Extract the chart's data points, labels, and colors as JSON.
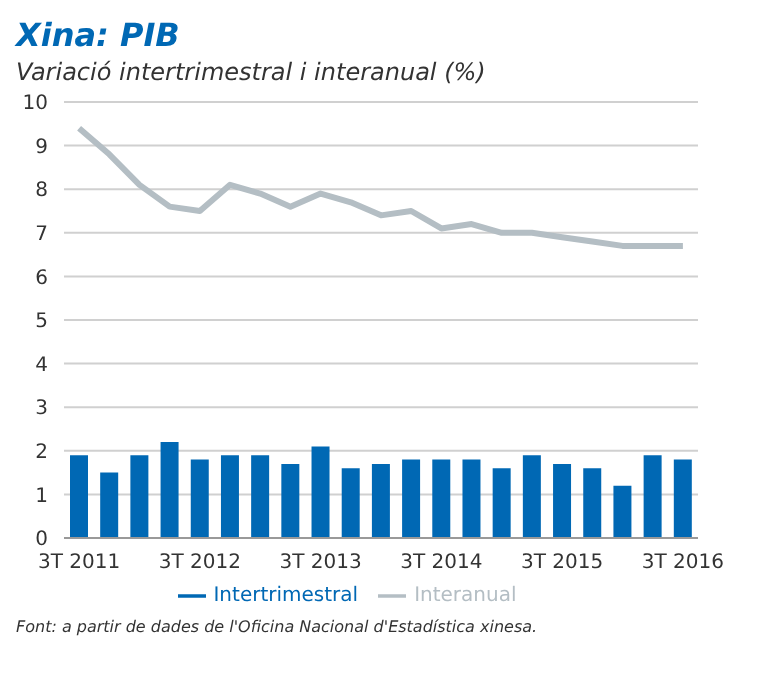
{
  "chart_data": {
    "type": "bar",
    "title": "Xina: PIB",
    "subtitle": "Variació intertrimestral i interanual (%)",
    "categories": [
      "3T 2011",
      null,
      null,
      null,
      "3T 2012",
      null,
      null,
      null,
      "3T 2013",
      null,
      null,
      null,
      "3T 2014",
      null,
      null,
      null,
      "3T 2015",
      null,
      null,
      null,
      "3T 2016"
    ],
    "series": [
      {
        "name": "Intertrimestral",
        "color": "#0068b4",
        "values": [
          1.9,
          1.5,
          1.9,
          2.2,
          1.8,
          1.9,
          1.9,
          1.7,
          2.1,
          1.6,
          1.7,
          1.8,
          1.8,
          1.8,
          1.6,
          1.9,
          1.7,
          1.6,
          1.2,
          1.9,
          1.8
        ]
      },
      {
        "name": "Interanual",
        "type": "line",
        "color": "#b4bec4",
        "values": [
          9.4,
          8.8,
          8.1,
          7.6,
          7.5,
          8.1,
          7.9,
          7.6,
          7.9,
          7.7,
          7.4,
          7.5,
          7.1,
          7.2,
          7.0,
          7.0,
          6.9,
          6.8,
          6.7,
          6.7,
          6.7
        ]
      }
    ],
    "ylim": [
      0,
      10
    ],
    "yticks": [
      0,
      1,
      2,
      3,
      4,
      5,
      6,
      7,
      8,
      9,
      10
    ],
    "grid": "y",
    "legend": "bottom",
    "marker": "none",
    "line_style": "solid",
    "annotations": [
      "Font: a partir de dades de l'Oficina Nacional d'Estadística xinesa."
    ]
  }
}
